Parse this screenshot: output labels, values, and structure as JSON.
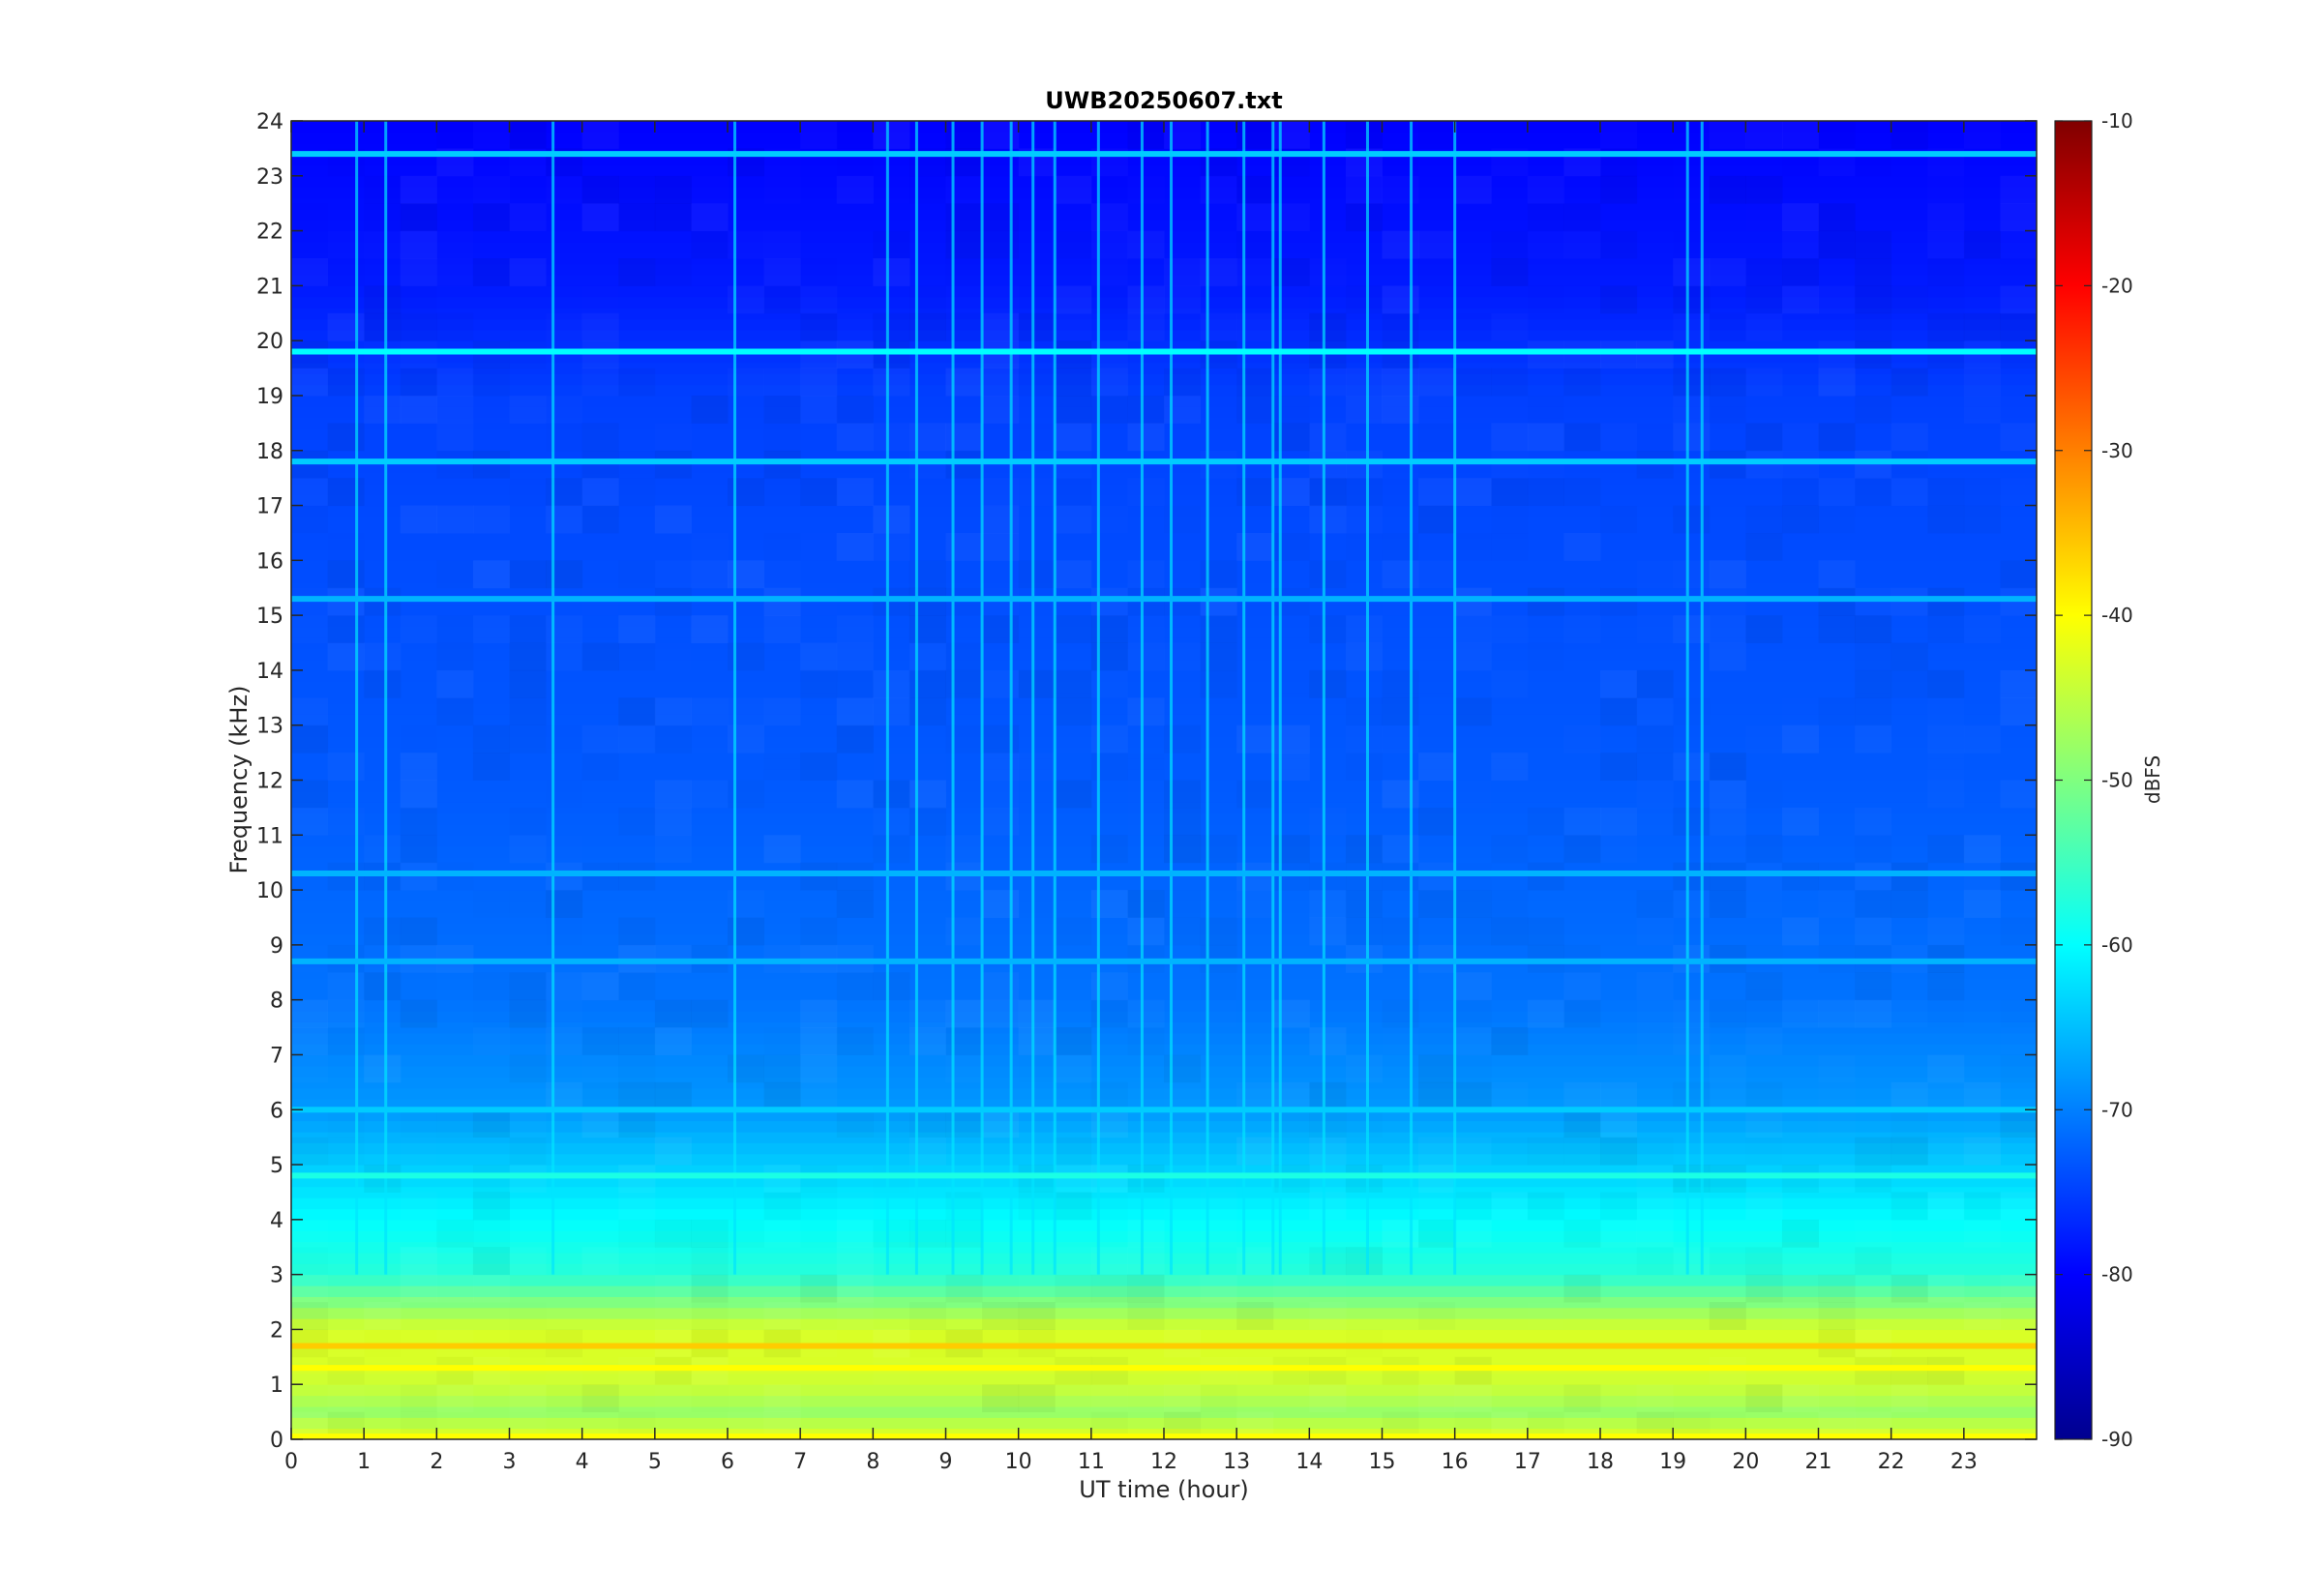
{
  "window": {
    "title": "UWB20250607.txt"
  },
  "chart_data": {
    "type": "heatmap",
    "title": "UWB20250607.txt",
    "xlabel": "UT time (hour)",
    "ylabel": "Frequency (kHz)",
    "xlim": [
      0,
      24
    ],
    "ylim": [
      0,
      24
    ],
    "xticks": [
      0,
      1,
      2,
      3,
      4,
      5,
      6,
      7,
      8,
      9,
      10,
      11,
      12,
      13,
      14,
      15,
      16,
      17,
      18,
      19,
      20,
      21,
      22,
      23
    ],
    "yticks": [
      0,
      1,
      2,
      3,
      4,
      5,
      6,
      7,
      8,
      9,
      10,
      11,
      12,
      13,
      14,
      15,
      16,
      17,
      18,
      19,
      20,
      21,
      22,
      23,
      24
    ],
    "colorbar": {
      "label": "dBFS",
      "colormap": "jet",
      "clim": [
        -90,
        -10
      ],
      "ticks": [
        -10,
        -20,
        -30,
        -40,
        -50,
        -60,
        -70,
        -80,
        -90
      ]
    },
    "background_level_profile": [
      {
        "freq": 0.0,
        "dbfs": -42
      },
      {
        "freq": 0.5,
        "dbfs": -48
      },
      {
        "freq": 1.0,
        "dbfs": -44
      },
      {
        "freq": 1.5,
        "dbfs": -43
      },
      {
        "freq": 2.0,
        "dbfs": -43
      },
      {
        "freq": 2.5,
        "dbfs": -50
      },
      {
        "freq": 3.0,
        "dbfs": -57
      },
      {
        "freq": 4.0,
        "dbfs": -60
      },
      {
        "freq": 5.0,
        "dbfs": -64
      },
      {
        "freq": 6.0,
        "dbfs": -68
      },
      {
        "freq": 8.0,
        "dbfs": -71
      },
      {
        "freq": 12.0,
        "dbfs": -73
      },
      {
        "freq": 16.0,
        "dbfs": -74
      },
      {
        "freq": 19.0,
        "dbfs": -75
      },
      {
        "freq": 21.0,
        "dbfs": -78
      },
      {
        "freq": 24.0,
        "dbfs": -80
      }
    ],
    "horizontal_lines": [
      {
        "freq": 19.8,
        "dbfs": -60
      },
      {
        "freq": 17.8,
        "dbfs": -64
      },
      {
        "freq": 23.4,
        "dbfs": -64
      },
      {
        "freq": 6.0,
        "dbfs": -64
      },
      {
        "freq": 8.7,
        "dbfs": -66
      },
      {
        "freq": 15.3,
        "dbfs": -66
      },
      {
        "freq": 10.3,
        "dbfs": -66
      },
      {
        "freq": 4.8,
        "dbfs": -58
      },
      {
        "freq": 1.7,
        "dbfs": -36
      },
      {
        "freq": 1.3,
        "dbfs": -40
      },
      {
        "freq": 0.05,
        "dbfs": -40
      }
    ],
    "vertical_spikes_hours": [
      0.9,
      1.3,
      3.6,
      6.1,
      8.2,
      8.6,
      9.1,
      9.5,
      9.9,
      10.2,
      10.5,
      11.1,
      11.7,
      12.1,
      12.6,
      13.1,
      13.5,
      13.6,
      14.2,
      14.8,
      15.4,
      16.0,
      19.2,
      19.4
    ]
  }
}
